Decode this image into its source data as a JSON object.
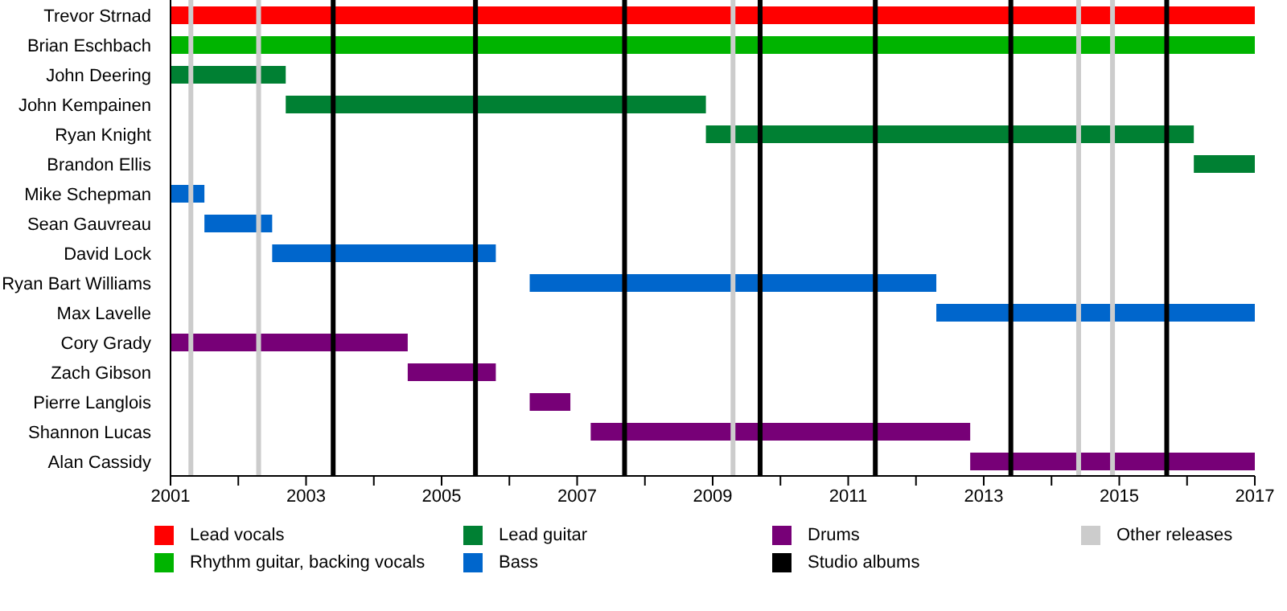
{
  "chart_data": {
    "type": "bar",
    "orientation": "horizontal",
    "legend": "bottom",
    "grid": false,
    "categories": [
      "Trevor Strnad",
      "Brian Eschbach",
      "John Deering",
      "John Kempainen",
      "Ryan Knight",
      "Brandon Ellis",
      "Mike Schepman",
      "Sean Gauvreau",
      "David Lock",
      "Ryan Bart Williams",
      "Max Lavelle",
      "Cory Grady",
      "Zach Gibson",
      "Pierre Langlois",
      "Shannon Lucas",
      "Alan Cassidy"
    ],
    "xlim": [
      2001,
      2017
    ],
    "xticks": [
      2001,
      {
        "value": 2002,
        "label": null
      },
      2003,
      {
        "value": 2004,
        "label": null
      },
      2005,
      {
        "value": 2006,
        "label": null
      },
      2007,
      {
        "value": 2008,
        "label": null
      },
      2009,
      {
        "value": 2010,
        "label": null
      },
      2011,
      {
        "value": 2012,
        "label": null
      },
      2013,
      {
        "value": 2014,
        "label": null
      },
      2015,
      {
        "value": 2016,
        "label": null
      },
      2017
    ],
    "series": [
      {
        "name": "Lead vocals",
        "color": "#ff0000",
        "values": [
          16,
          null,
          null,
          null,
          null,
          null,
          null,
          null,
          null,
          null,
          null,
          null,
          null,
          null,
          null,
          null
        ],
        "base": [
          2001,
          null,
          null,
          null,
          null,
          null,
          null,
          null,
          null,
          null,
          null,
          null,
          null,
          null,
          null,
          null
        ]
      },
      {
        "name": "Rhythm guitar, backing vocals",
        "color": "#00b400",
        "values": [
          null,
          16,
          null,
          null,
          null,
          null,
          null,
          null,
          null,
          null,
          null,
          null,
          null,
          null,
          null,
          null
        ],
        "base": [
          null,
          2001,
          null,
          null,
          null,
          null,
          null,
          null,
          null,
          null,
          null,
          null,
          null,
          null,
          null,
          null
        ]
      },
      {
        "name": "Lead guitar",
        "color": "#008033",
        "values": [
          null,
          null,
          1.7,
          6.2,
          7.2,
          0.9,
          null,
          null,
          null,
          null,
          null,
          null,
          null,
          null,
          null,
          null
        ],
        "base": [
          null,
          null,
          2001,
          2002.7,
          2008.9,
          2016.1,
          null,
          null,
          null,
          null,
          null,
          null,
          null,
          null,
          null,
          null
        ]
      },
      {
        "name": "Bass",
        "color": "#0066cc",
        "values": [
          null,
          null,
          null,
          null,
          null,
          null,
          0.5,
          1.0,
          3.3,
          6.0,
          4.7,
          null,
          null,
          null,
          null,
          null
        ],
        "base": [
          null,
          null,
          null,
          null,
          null,
          null,
          2001,
          2001.5,
          2002.5,
          2006.3,
          2012.3,
          null,
          null,
          null,
          null,
          null
        ]
      },
      {
        "name": "Drums",
        "color": "#770077",
        "values": [
          null,
          null,
          null,
          null,
          null,
          null,
          null,
          null,
          null,
          null,
          null,
          3.5,
          1.3,
          0.6,
          5.6,
          4.2
        ],
        "base": [
          null,
          null,
          null,
          null,
          null,
          null,
          null,
          null,
          null,
          null,
          null,
          2001,
          2004.5,
          2006.3,
          2007.2,
          2012.8
        ]
      }
    ],
    "ref_lines": [
      {
        "axis": "x",
        "value": 2003.4,
        "label": "Studio albums",
        "color": "#000000"
      },
      {
        "axis": "x",
        "value": 2005.5,
        "color": "#000000"
      },
      {
        "axis": "x",
        "value": 2007.7,
        "color": "#000000"
      },
      {
        "axis": "x",
        "value": 2009.7,
        "color": "#000000"
      },
      {
        "axis": "x",
        "value": 2011.4,
        "color": "#000000"
      },
      {
        "axis": "x",
        "value": 2013.4,
        "color": "#000000"
      },
      {
        "axis": "x",
        "value": 2015.7,
        "color": "#000000"
      },
      {
        "axis": "x",
        "value": 2001.3,
        "label": "Other releases",
        "color": "#cccccc"
      },
      {
        "axis": "x",
        "value": 2002.3,
        "color": "#cccccc"
      },
      {
        "axis": "x",
        "value": 2009.3,
        "color": "#cccccc"
      },
      {
        "axis": "x",
        "value": 2014.4,
        "color": "#cccccc"
      },
      {
        "axis": "x",
        "value": 2014.9,
        "color": "#cccccc"
      }
    ]
  }
}
